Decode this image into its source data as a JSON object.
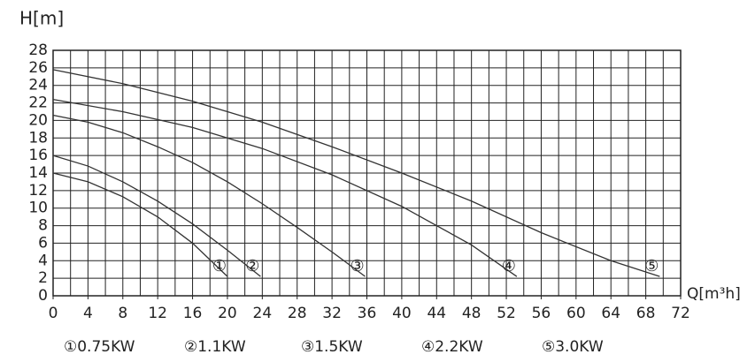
{
  "chart_data": {
    "type": "line",
    "ylabel": "H[m]",
    "xlabel": "Q[m³h]",
    "xlim": [
      0,
      72
    ],
    "xticks": [
      0,
      4,
      8,
      12,
      16,
      20,
      24,
      28,
      32,
      36,
      40,
      44,
      48,
      52,
      56,
      60,
      64,
      68,
      72
    ],
    "xgrid": [
      0,
      2,
      4,
      6,
      8,
      10,
      12,
      14,
      16,
      18,
      20,
      22,
      24,
      26,
      28,
      30,
      32,
      34,
      36,
      38,
      40,
      42,
      44,
      46,
      48,
      50,
      52,
      54,
      56,
      58,
      60,
      62,
      64,
      66,
      68,
      70,
      72
    ],
    "ylim": [
      0,
      28
    ],
    "yticks": [
      0,
      2,
      4,
      6,
      8,
      10,
      12,
      14,
      16,
      18,
      20,
      22,
      24,
      26,
      28
    ],
    "grid": true,
    "series": [
      {
        "name": "①0.75KW",
        "marker_label": "①",
        "color": "#333333",
        "x": [
          0,
          4,
          8,
          12,
          16,
          20
        ],
        "values": [
          14,
          13,
          11.3,
          9,
          6,
          2.2
        ]
      },
      {
        "name": "②1.1KW",
        "marker_label": "②",
        "color": "#333333",
        "x": [
          0,
          4,
          8,
          12,
          16,
          20,
          23.8
        ],
        "values": [
          16,
          14.8,
          13,
          10.8,
          8.2,
          5.2,
          2.2
        ]
      },
      {
        "name": "③1.5KW",
        "marker_label": "③",
        "color": "#333333",
        "x": [
          0,
          4,
          8,
          12,
          16,
          20,
          24,
          28,
          32,
          35.8
        ],
        "values": [
          20.6,
          19.8,
          18.6,
          17,
          15.2,
          13,
          10.5,
          7.8,
          5,
          2.2
        ]
      },
      {
        "name": "④2.2KW",
        "marker_label": "④",
        "color": "#333333",
        "x": [
          0,
          8,
          16,
          24,
          32,
          40,
          48,
          53.2
        ],
        "values": [
          22.4,
          21,
          19.2,
          16.8,
          13.8,
          10.2,
          5.8,
          2.2
        ]
      },
      {
        "name": "⑤3.0KW",
        "marker_label": "⑤",
        "color": "#333333",
        "x": [
          0,
          8,
          16,
          24,
          32,
          40,
          48,
          56,
          64,
          69.6
        ],
        "values": [
          25.8,
          24.2,
          22.2,
          19.8,
          17,
          14,
          10.8,
          7.2,
          4,
          2.2
        ]
      }
    ]
  }
}
